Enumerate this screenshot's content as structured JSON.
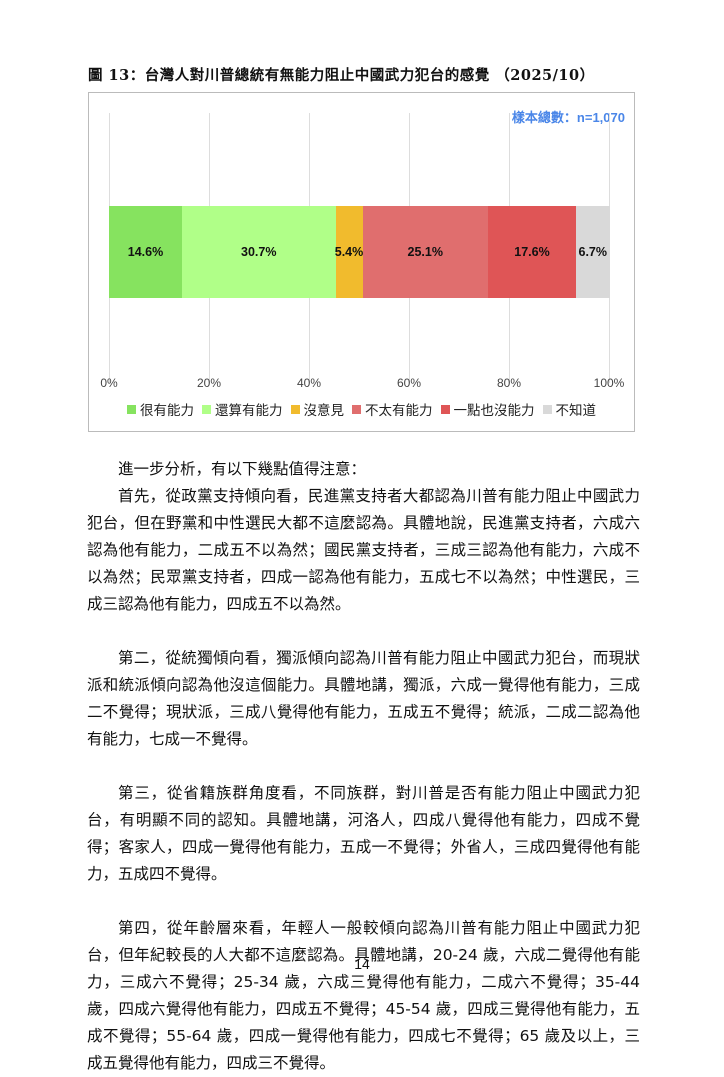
{
  "figure_title": "圖 13：台灣人對川普總統有無能力阻止中國武力犯台的感覺 （2025/10）",
  "chart_data": {
    "type": "bar",
    "orientation": "horizontal-stacked-100",
    "sample_label": "樣本總數：n=1,070",
    "x_ticks": [
      "0%",
      "20%",
      "40%",
      "60%",
      "80%",
      "100%"
    ],
    "xlim": [
      0,
      100
    ],
    "grid": true,
    "legend_position": "bottom",
    "series": [
      {
        "name": "很有能力",
        "value": 14.6,
        "label": "14.6%",
        "color": "#86e35f"
      },
      {
        "name": "還算有能力",
        "value": 30.7,
        "label": "30.7%",
        "color": "#b0ff88"
      },
      {
        "name": "沒意見",
        "value": 5.4,
        "label": "5.4%",
        "color": "#f1bb2d"
      },
      {
        "name": "不太有能力",
        "value": 25.1,
        "label": "25.1%",
        "color": "#e06e6e"
      },
      {
        "name": "一點也沒能力",
        "value": 17.6,
        "label": "17.6%",
        "color": "#df5556"
      },
      {
        "name": "不知道",
        "value": 6.7,
        "label": "6.7%",
        "color": "#d9d9d9"
      }
    ]
  },
  "paragraphs": [
    "進一步分析，有以下幾點值得注意：",
    "首先，從政黨支持傾向看，民進黨支持者大都認為川普有能力阻止中國武力犯台，但在野黨和中性選民大都不這麼認為。具體地說，民進黨支持者，六成六認為他有能力，二成五不以為然；國民黨支持者，三成三認為他有能力，六成不以為然；民眾黨支持者，四成一認為他有能力，五成七不以為然；中性選民，三成三認為他有能力，四成五不以為然。",
    "第二，從統獨傾向看，獨派傾向認為川普有能力阻止中國武力犯台，而現狀派和統派傾向認為他沒這個能力。具體地講，獨派，六成一覺得他有能力，三成二不覺得；現狀派，三成八覺得他有能力，五成五不覺得；統派，二成二認為他有能力，七成一不覺得。",
    "第三，從省籍族群角度看，不同族群，對川普是否有能力阻止中國武力犯台，有明顯不同的認知。具體地講，河洛人，四成八覺得他有能力，四成不覺得；客家人，四成一覺得他有能力，五成一不覺得；外省人，三成四覺得他有能力，五成四不覺得。",
    "第四，從年齡層來看，年輕人一般較傾向認為川普有能力阻止中國武力犯台，但年紀較長的人大都不這麼認為。具體地講，20-24 歲，六成二覺得他有能力，三成六不覺得；25-34 歲，六成三覺得他有能力，二成六不覺得；35-44 歲，四成六覺得他有能力，四成五不覺得；45-54 歲，四成三覺得他有能力，五成不覺得；55-64 歲，四成一覺得他有能力，四成七不覺得；65 歲及以上，三成五覺得他有能力，四成三不覺得。"
  ],
  "page_number": "14"
}
